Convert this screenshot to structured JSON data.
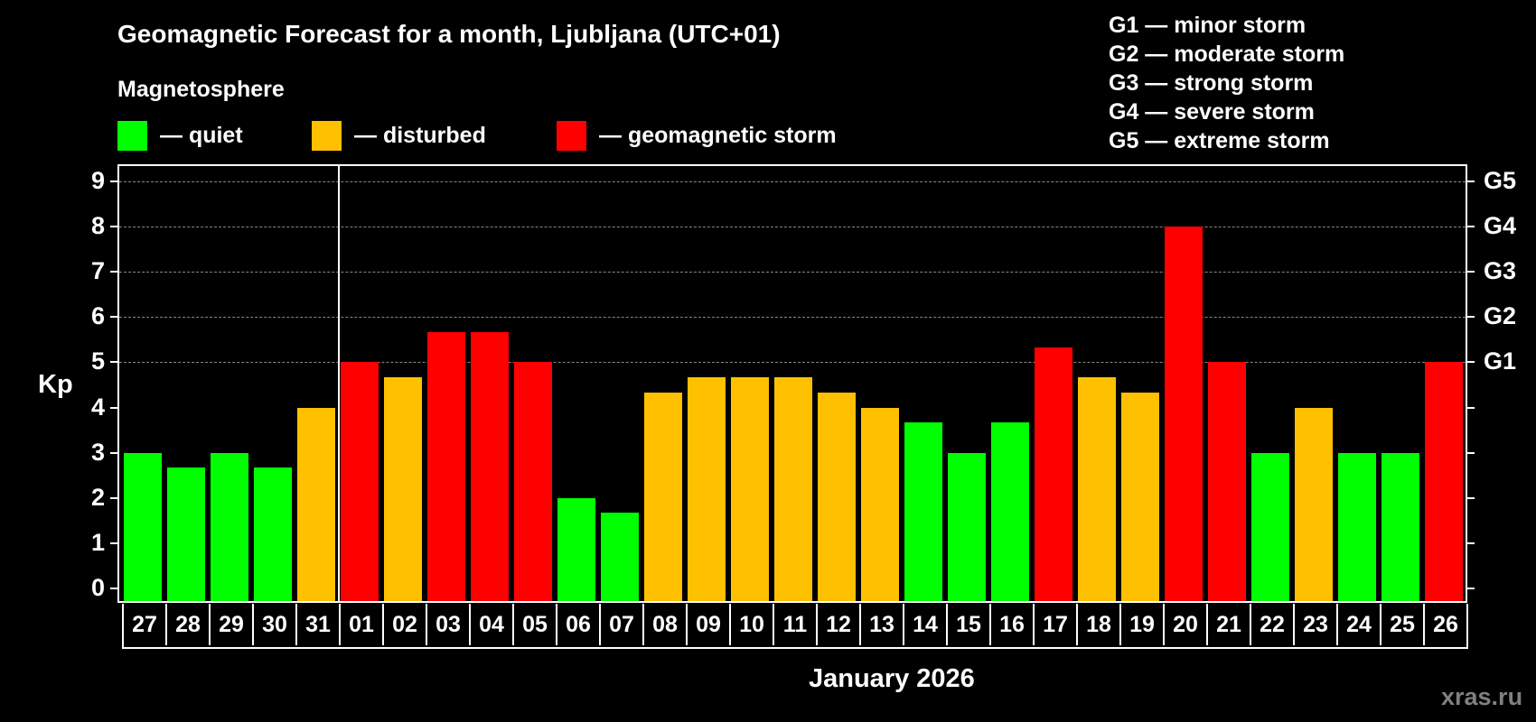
{
  "header": {
    "title": "Geomagnetic Forecast for a month, Ljubljana (UTC+01)",
    "section_label": "Magnetosphere"
  },
  "legend": [
    {
      "label": "— quiet",
      "color": "#00ff00"
    },
    {
      "label": "— disturbed",
      "color": "#ffc000"
    },
    {
      "label": "— geomagnetic storm",
      "color": "#ff0000"
    }
  ],
  "storm_scale": [
    "G1 — minor storm",
    "G2 — moderate storm",
    "G3 — strong storm",
    "G4 — severe storm",
    "G5 — extreme storm"
  ],
  "footer": {
    "month": "January 2026",
    "watermark": "xras.ru"
  },
  "chart_data": {
    "type": "bar",
    "title": "Geomagnetic Forecast for a month, Ljubljana (UTC+01)",
    "xlabel": "January 2026",
    "ylabel": "Kp",
    "ylim": [
      0,
      9
    ],
    "yticks": [
      0,
      1,
      2,
      3,
      4,
      5,
      6,
      7,
      8,
      9
    ],
    "right_axis_labels": [
      {
        "value": 5,
        "label": "G1"
      },
      {
        "value": 6,
        "label": "G2"
      },
      {
        "value": 7,
        "label": "G3"
      },
      {
        "value": 8,
        "label": "G4"
      },
      {
        "value": 9,
        "label": "G5"
      }
    ],
    "grid": "horizontal dashed at 5-9",
    "month_divider_after_index": 4,
    "categories": [
      "27",
      "28",
      "29",
      "30",
      "31",
      "01",
      "02",
      "03",
      "04",
      "05",
      "06",
      "07",
      "08",
      "09",
      "10",
      "11",
      "12",
      "13",
      "14",
      "15",
      "16",
      "17",
      "18",
      "19",
      "20",
      "21",
      "22",
      "23",
      "24",
      "25",
      "26"
    ],
    "values": [
      3.0,
      2.67,
      3.0,
      2.67,
      4.0,
      5.0,
      4.67,
      5.67,
      5.67,
      5.0,
      2.0,
      1.67,
      4.33,
      4.67,
      4.67,
      4.67,
      4.33,
      4.0,
      3.67,
      3.0,
      3.67,
      5.33,
      4.67,
      4.33,
      8.0,
      5.0,
      3.0,
      4.0,
      3.0,
      3.0,
      5.0
    ],
    "status": [
      "quiet",
      "quiet",
      "quiet",
      "quiet",
      "disturbed",
      "storm",
      "disturbed",
      "storm",
      "storm",
      "storm",
      "quiet",
      "quiet",
      "disturbed",
      "disturbed",
      "disturbed",
      "disturbed",
      "disturbed",
      "disturbed",
      "quiet",
      "quiet",
      "quiet",
      "storm",
      "disturbed",
      "disturbed",
      "storm",
      "storm",
      "quiet",
      "disturbed",
      "quiet",
      "quiet",
      "storm"
    ],
    "colors": {
      "quiet": "#00ff00",
      "disturbed": "#ffc000",
      "storm": "#ff0000"
    }
  }
}
